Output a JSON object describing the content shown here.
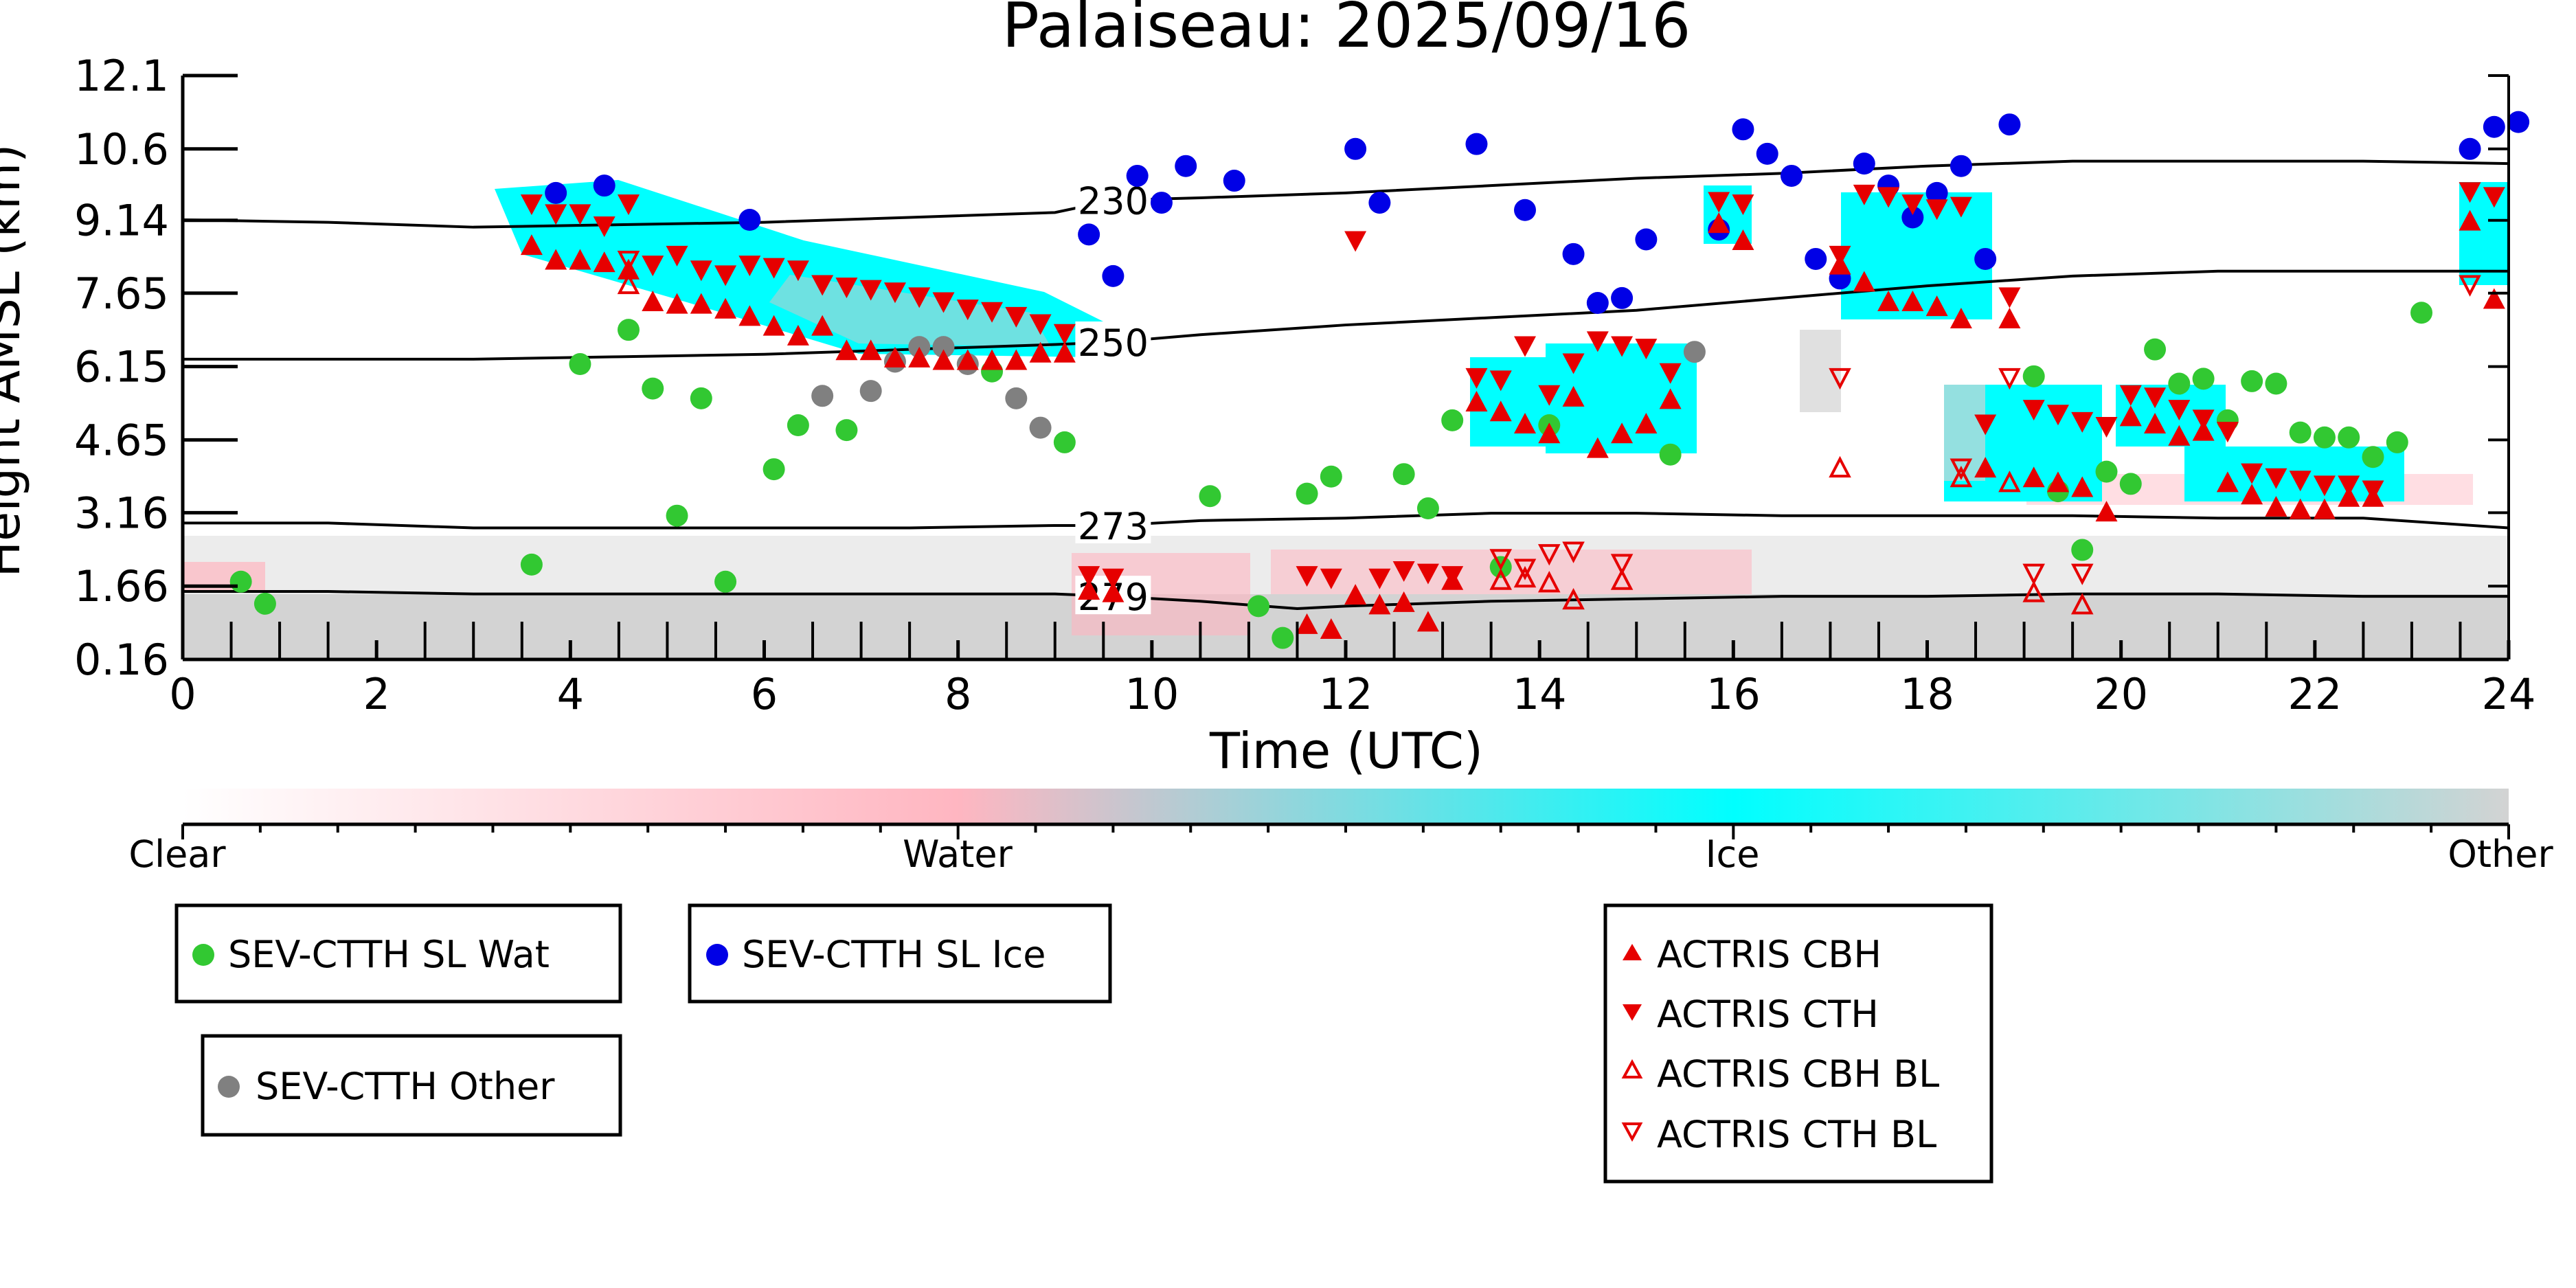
{
  "chart_data": {
    "type": "scatter",
    "title": "Palaiseau: 2025/09/16",
    "xlabel": "Time (UTC)",
    "ylabel": "Height AMSL (km)",
    "xlim": [
      0,
      24
    ],
    "ylim": [
      0.16,
      12.1
    ],
    "x_ticks": [
      "0",
      "2",
      "4",
      "6",
      "8",
      "10",
      "12",
      "14",
      "16",
      "18",
      "20",
      "22",
      "24"
    ],
    "y_ticks": [
      "0.16",
      "1.66",
      "3.16",
      "4.65",
      "6.15",
      "7.65",
      "9.14",
      "10.6",
      "12.1"
    ],
    "y_tick_values": [
      0.16,
      1.66,
      3.16,
      4.65,
      6.15,
      7.65,
      9.14,
      10.6,
      12.1
    ],
    "grid": false,
    "colorbar": {
      "labels": [
        "Clear",
        "Water",
        "Ice",
        "Other"
      ],
      "colors": [
        "#ffffff",
        "#ffb6c1",
        "#00ffff",
        "#d3d3d3"
      ]
    },
    "contours": [
      {
        "label": "230",
        "x": [
          0,
          1.5,
          3,
          4.5,
          6,
          7.5,
          9,
          9.6,
          10.5,
          12,
          13.5,
          15,
          16.5,
          18,
          19.5,
          21,
          22.5,
          24
        ],
        "y": [
          9.15,
          9.1,
          9.0,
          9.05,
          9.1,
          9.2,
          9.3,
          9.55,
          9.6,
          9.7,
          9.85,
          10.0,
          10.1,
          10.25,
          10.35,
          10.35,
          10.35,
          10.3
        ],
        "label_x": 9.6
      },
      {
        "label": "250",
        "x": [
          0,
          1.5,
          3,
          4.5,
          6,
          7.5,
          9,
          9.6,
          10.5,
          12,
          13.5,
          15,
          16.5,
          18,
          19.5,
          21,
          22.5,
          24
        ],
        "y": [
          6.3,
          6.3,
          6.3,
          6.35,
          6.4,
          6.5,
          6.6,
          6.65,
          6.8,
          7.0,
          7.15,
          7.3,
          7.55,
          7.8,
          8.0,
          8.1,
          8.1,
          8.1
        ],
        "label_x": 9.6
      },
      {
        "label": "273",
        "x": [
          0,
          1.5,
          3,
          4.5,
          6,
          7.5,
          9,
          9.6,
          10.5,
          12,
          13.5,
          15,
          16.5,
          18,
          19.5,
          21,
          22.5,
          24
        ],
        "y": [
          2.95,
          2.95,
          2.85,
          2.85,
          2.85,
          2.85,
          2.9,
          2.9,
          3.0,
          3.05,
          3.15,
          3.15,
          3.1,
          3.1,
          3.1,
          3.05,
          3.05,
          2.85
        ],
        "label_x": 9.6
      },
      {
        "label": "279",
        "x": [
          0,
          1.5,
          3,
          4.5,
          6,
          7.5,
          9,
          9.6,
          10.5,
          11.5,
          12,
          13.5,
          15,
          16.5,
          18,
          19.5,
          21,
          22.5,
          24
        ],
        "y": [
          1.55,
          1.55,
          1.5,
          1.5,
          1.5,
          1.5,
          1.5,
          1.45,
          1.35,
          1.2,
          1.25,
          1.35,
          1.4,
          1.45,
          1.45,
          1.5,
          1.5,
          1.45,
          1.45
        ],
        "label_x": 9.6
      }
    ],
    "series": [
      {
        "name": "SEV-CTTH SL Wat",
        "marker": "circle",
        "color": "#32c832",
        "x": [
          0.6,
          0.85,
          3.6,
          4.1,
          4.6,
          4.85,
          5.1,
          5.35,
          5.6,
          6.1,
          6.35,
          6.85,
          8.35,
          9.1,
          10.6,
          11.1,
          11.35,
          11.6,
          11.85,
          12.6,
          12.85,
          13.1,
          13.6,
          14.1,
          15.35,
          19.1,
          19.35,
          19.6,
          19.85,
          20.1,
          20.35,
          20.6,
          20.85,
          21.1,
          21.35,
          21.6,
          21.85,
          22.1,
          22.35,
          22.6,
          22.85,
          23.1
        ],
        "y": [
          1.75,
          1.3,
          2.1,
          6.2,
          6.9,
          5.7,
          3.1,
          5.5,
          1.75,
          4.05,
          4.95,
          4.85,
          6.05,
          4.6,
          3.5,
          1.25,
          0.6,
          3.55,
          3.9,
          3.95,
          3.25,
          5.05,
          2.05,
          4.95,
          4.35,
          5.95,
          3.6,
          2.4,
          4.0,
          3.75,
          6.5,
          5.8,
          5.9,
          5.05,
          5.85,
          5.8,
          4.8,
          4.7,
          4.7,
          4.3,
          4.6,
          7.25
        ]
      },
      {
        "name": "SEV-CTTH SL Ice",
        "marker": "circle",
        "color": "#0000e6",
        "x": [
          3.85,
          4.35,
          5.85,
          9.35,
          9.6,
          9.85,
          10.1,
          10.35,
          10.85,
          12.1,
          12.35,
          13.35,
          13.85,
          14.35,
          14.6,
          14.85,
          15.1,
          15.85,
          16.1,
          16.35,
          16.6,
          16.85,
          17.1,
          17.35,
          17.6,
          17.85,
          18.1,
          18.35,
          18.6,
          18.85,
          23.6,
          23.85,
          24.1
        ],
        "y": [
          9.7,
          9.85,
          9.15,
          8.85,
          8.0,
          10.05,
          9.5,
          10.25,
          9.95,
          10.6,
          9.5,
          10.7,
          9.35,
          8.45,
          7.45,
          7.55,
          8.75,
          8.95,
          11.0,
          10.5,
          10.05,
          8.35,
          7.95,
          10.3,
          9.85,
          9.2,
          9.7,
          10.25,
          8.35,
          11.1,
          10.6,
          11.05,
          11.15
        ]
      },
      {
        "name": "SEV-CTTH Other",
        "marker": "circle",
        "color": "#808080",
        "x": [
          6.6,
          7.1,
          7.35,
          7.6,
          7.85,
          8.1,
          8.6,
          8.85,
          15.6
        ],
        "y": [
          5.55,
          5.65,
          6.25,
          6.55,
          6.55,
          6.2,
          5.5,
          4.9,
          6.45
        ]
      },
      {
        "name": "ACTRIS CBH",
        "marker": "triangle-up",
        "color": "#e60000",
        "x": [
          3.6,
          3.85,
          4.1,
          4.35,
          4.6,
          4.85,
          5.1,
          5.35,
          5.6,
          5.85,
          6.1,
          6.35,
          6.6,
          6.85,
          7.1,
          7.35,
          7.6,
          7.85,
          8.1,
          8.35,
          8.6,
          8.85,
          9.1,
          9.35,
          9.6,
          11.6,
          11.85,
          12.1,
          12.35,
          12.6,
          12.85,
          13.1,
          13.35,
          13.6,
          13.85,
          14.1,
          14.35,
          14.6,
          14.85,
          15.1,
          15.35,
          15.85,
          16.1,
          17.1,
          17.35,
          17.6,
          17.85,
          18.1,
          18.35,
          18.6,
          18.85,
          19.1,
          19.35,
          19.6,
          19.85,
          20.1,
          20.35,
          20.6,
          20.85,
          21.1,
          21.35,
          21.6,
          21.85,
          22.1,
          22.35,
          22.6,
          23.6,
          23.85
        ],
        "y": [
          8.6,
          8.3,
          8.3,
          8.25,
          8.1,
          7.45,
          7.4,
          7.4,
          7.3,
          7.15,
          6.95,
          6.75,
          6.95,
          6.45,
          6.45,
          6.3,
          6.3,
          6.25,
          6.25,
          6.25,
          6.25,
          6.4,
          6.4,
          1.55,
          1.5,
          0.85,
          0.75,
          1.45,
          1.25,
          1.3,
          0.9,
          1.75,
          5.4,
          5.2,
          4.95,
          4.75,
          5.5,
          4.45,
          4.75,
          4.95,
          5.45,
          9.05,
          8.7,
          8.2,
          7.85,
          7.45,
          7.45,
          7.35,
          7.1,
          4.05,
          7.1,
          3.85,
          3.75,
          3.65,
          3.15,
          5.1,
          4.95,
          4.7,
          4.8,
          3.75,
          3.5,
          3.25,
          3.2,
          3.2,
          3.45,
          3.45,
          9.1,
          7.5
        ]
      },
      {
        "name": "ACTRIS CTH",
        "marker": "triangle-down",
        "color": "#e60000",
        "x": [
          3.6,
          3.85,
          4.1,
          4.35,
          4.6,
          4.85,
          5.1,
          5.35,
          5.6,
          5.85,
          6.1,
          6.35,
          6.6,
          6.85,
          7.1,
          7.35,
          7.6,
          7.85,
          8.1,
          8.35,
          8.6,
          8.85,
          9.1,
          9.35,
          9.6,
          11.6,
          11.85,
          12.1,
          12.35,
          12.6,
          12.85,
          13.1,
          13.35,
          13.6,
          13.85,
          14.1,
          14.35,
          14.6,
          14.85,
          15.1,
          15.35,
          15.85,
          16.1,
          17.1,
          17.35,
          17.6,
          17.85,
          18.1,
          18.35,
          18.6,
          18.85,
          19.1,
          19.35,
          19.6,
          19.85,
          20.1,
          20.35,
          20.6,
          20.85,
          21.1,
          21.35,
          21.6,
          21.85,
          22.1,
          22.35,
          22.6,
          23.6,
          23.85
        ],
        "y": [
          9.5,
          9.3,
          9.3,
          9.05,
          9.5,
          8.25,
          8.45,
          8.15,
          8.05,
          8.25,
          8.2,
          8.15,
          7.85,
          7.8,
          7.75,
          7.7,
          7.6,
          7.5,
          7.35,
          7.3,
          7.2,
          7.05,
          6.85,
          1.9,
          1.85,
          1.9,
          1.85,
          8.75,
          1.85,
          2.0,
          1.95,
          1.9,
          5.95,
          5.9,
          6.6,
          5.6,
          6.25,
          6.7,
          6.6,
          6.55,
          6.05,
          9.55,
          9.5,
          8.45,
          9.7,
          9.65,
          9.5,
          9.4,
          9.45,
          5.0,
          7.6,
          5.3,
          5.2,
          5.05,
          4.95,
          5.6,
          5.55,
          5.3,
          5.1,
          4.85,
          4.0,
          3.9,
          3.85,
          3.75,
          3.75,
          3.65,
          9.75,
          9.65
        ]
      },
      {
        "name": "ACTRIS CBH BL",
        "marker": "triangle-up-open",
        "color": "#e60000",
        "x": [
          4.6,
          13.6,
          13.85,
          14.1,
          14.35,
          14.85,
          17.1,
          18.35,
          18.85,
          19.1,
          19.6
        ],
        "y": [
          7.8,
          1.75,
          1.8,
          1.7,
          1.35,
          1.75,
          4.05,
          3.85,
          3.75,
          1.5,
          1.25
        ]
      },
      {
        "name": "ACTRIS CTH BL",
        "marker": "triangle-down-open",
        "color": "#e60000",
        "x": [
          4.6,
          13.6,
          13.85,
          14.1,
          14.35,
          14.85,
          17.1,
          18.35,
          18.85,
          19.1,
          19.6,
          23.6
        ],
        "y": [
          8.35,
          2.25,
          2.05,
          2.35,
          2.4,
          2.15,
          5.95,
          4.1,
          5.95,
          1.95,
          1.95,
          7.85
        ]
      }
    ],
    "legend": {
      "placement": "bottom",
      "boxes": [
        [
          "SEV-CTTH SL Wat"
        ],
        [
          "SEV-CTTH SL Ice"
        ],
        [
          "SEV-CTTH Other"
        ],
        [
          "ACTRIS CBH",
          "ACTRIS CTH",
          "ACTRIS CBH BL",
          "ACTRIS CTH BL"
        ]
      ]
    }
  }
}
